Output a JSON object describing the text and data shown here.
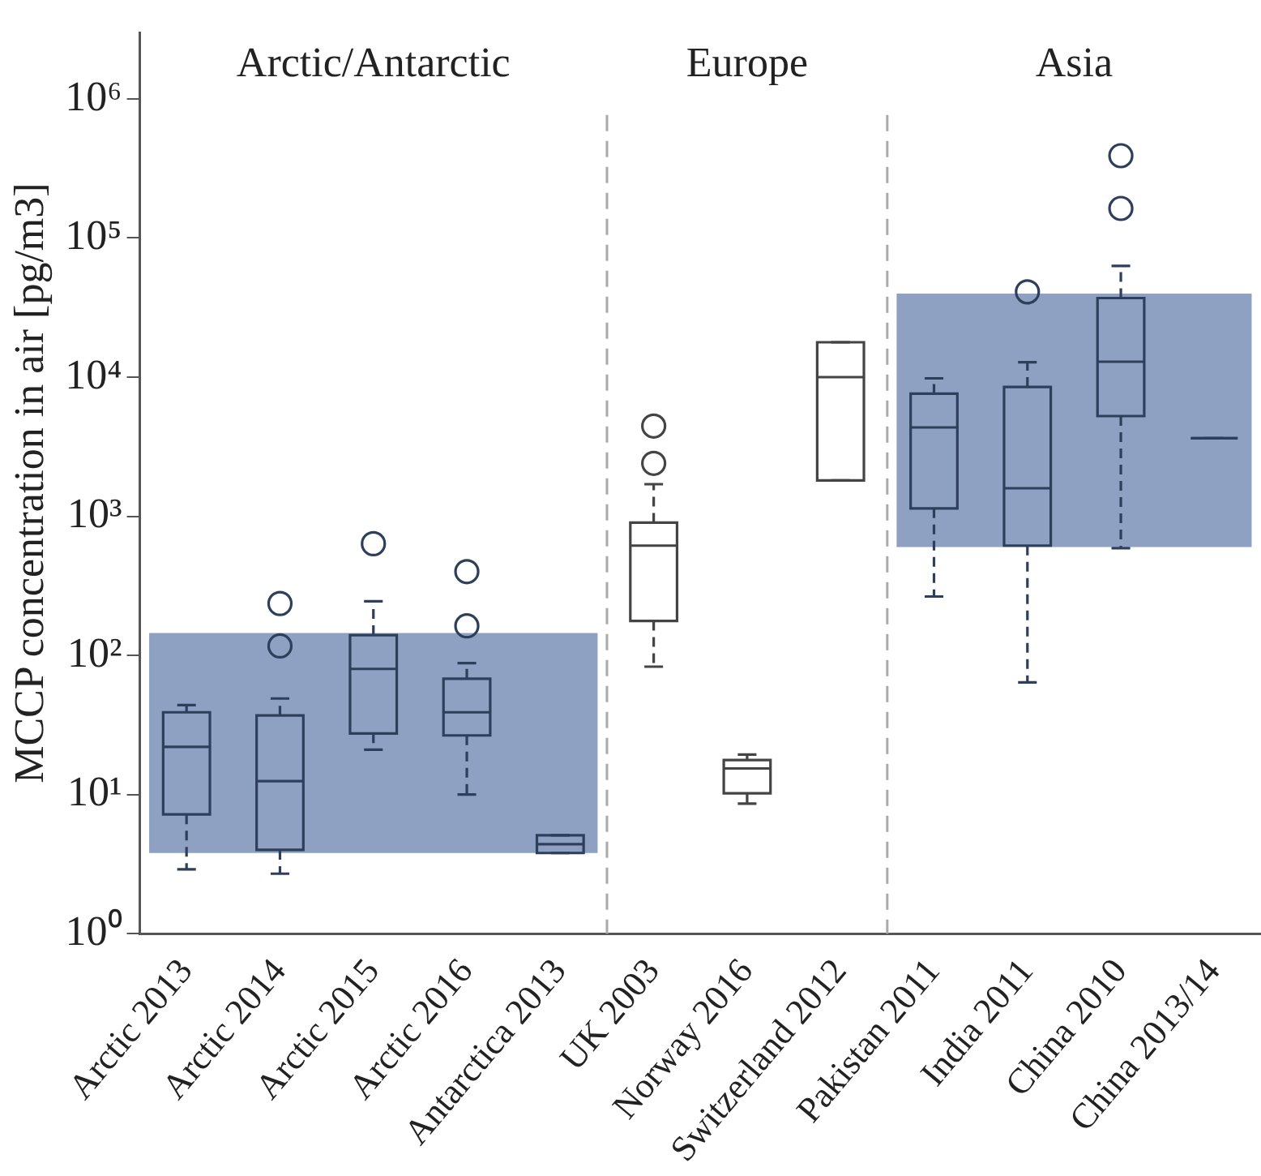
{
  "chart_data": {
    "type": "box",
    "ylabel": "MCCP concentration in air [pg/m3]",
    "categories": [
      "Arctic 2013",
      "Arctic 2014",
      "Arctic 2015",
      "Arctic 2016",
      "Antarctica 2013",
      "UK 2003",
      "Norway 2016",
      "Switzerland 2012",
      "Pakistan 2011",
      "India 2011",
      "China 2010",
      "China 2013/14"
    ],
    "boxes": [
      {
        "low": 2.9,
        "q1": 7.2,
        "median": 22,
        "q3": 39,
        "high": 44
      },
      {
        "low": 2.7,
        "q1": 4,
        "median": 12.5,
        "q3": 37,
        "high": 49,
        "outliers": [
          117,
          236
        ]
      },
      {
        "low": 21,
        "q1": 27.5,
        "median": 80,
        "q3": 140,
        "high": 245,
        "outliers": [
          635
        ]
      },
      {
        "low": 10,
        "q1": 26.6,
        "median": 39,
        "q3": 68,
        "high": 88,
        "outliers": [
          163,
          400
        ]
      },
      {
        "low": 3.8,
        "q1": 3.8,
        "median": 4.4,
        "q3": 5.1,
        "high": 5.1
      },
      {
        "low": 83,
        "q1": 177,
        "median": 615,
        "q3": 900,
        "high": 1700,
        "outliers": [
          2400,
          4450
        ]
      },
      {
        "low": 8.6,
        "q1": 10.2,
        "median": 15.4,
        "q3": 17.7,
        "high": 19.4
      },
      {
        "low": 1810,
        "q1": 1810,
        "median": 10000,
        "q3": 17800,
        "high": 17800
      },
      {
        "low": 265,
        "q1": 1140,
        "median": 4350,
        "q3": 7600,
        "high": 9800
      },
      {
        "low": 64,
        "q1": 615,
        "median": 1590,
        "q3": 8500,
        "high": 12800,
        "outliers": [
          41000
        ]
      },
      {
        "low": 590,
        "q1": 5250,
        "median": 12900,
        "q3": 37000,
        "high": 63000,
        "outliers": [
          163000,
          390000
        ]
      },
      {
        "low": 3640,
        "q1": 3640,
        "median": 3640,
        "q3": 3640,
        "high": 3640
      }
    ],
    "colors": [
      "#2e3f5c",
      "#2e3f5c",
      "#2e3f5c",
      "#2e3f5c",
      "#2e3f5c",
      "#444444",
      "#444444",
      "#444444",
      "#2e3f5c",
      "#2e3f5c",
      "#2e3f5c",
      "#2e3f5c"
    ],
    "log": true,
    "grid": false,
    "legend": false,
    "ylim": [
      1,
      3000000
    ],
    "yticks": [
      {
        "value": 1,
        "label": "10⁰"
      },
      {
        "value": 10,
        "label": "10¹"
      },
      {
        "value": 100,
        "label": "10²"
      },
      {
        "value": 1000,
        "label": "10³"
      },
      {
        "value": 10000,
        "label": "10⁴"
      },
      {
        "value": 100000,
        "label": "10⁵"
      },
      {
        "value": 1000000,
        "label": "10⁶"
      }
    ],
    "bands": [
      {
        "axis": "y",
        "from": 3.8,
        "to": 145,
        "color": "#8ea1c2"
      },
      {
        "axis": "y",
        "from": 600,
        "to": 39800,
        "color": "#8ea1c2"
      }
    ],
    "annotations": [
      "Arctic/Antarctic",
      "Europe",
      "Asia"
    ]
  }
}
